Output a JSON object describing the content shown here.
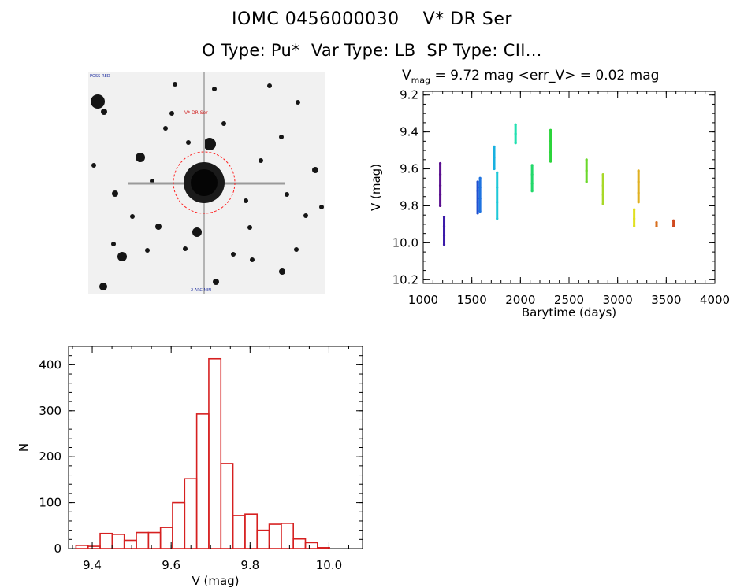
{
  "header": {
    "title": "IOMC 0456000030    V* DR Ser",
    "subtitle": "O Type: Pu*  Var Type: LB  SP Type: CII..."
  },
  "image_panel": {
    "corner_label_tl": "POSS-RED",
    "target_label": "V* DR Ser",
    "bottom_label": "2 ARC MIN",
    "marker_color": "#ff2020"
  },
  "light_curve": {
    "vmag_label": "V",
    "vmag_sub": "mag",
    "vmag_value": "= 9.72 mag <err_V> = 0.02 mag"
  },
  "chart_data": [
    {
      "type": "scatter",
      "title": "V_mag = 9.72 mag <err_V> = 0.02 mag",
      "xlabel": "Barytime (days)",
      "ylabel": "V (mag)",
      "xlim": [
        1000,
        4000
      ],
      "ylim": [
        10.22,
        9.18
      ],
      "xticks": [
        1000,
        1500,
        2000,
        2500,
        3000,
        3500,
        4000
      ],
      "yticks": [
        9.2,
        9.4,
        9.6,
        9.8,
        10.0,
        10.2
      ],
      "yticklabels": [
        "9.2",
        "9.4",
        "9.6",
        "9.8",
        "10.0",
        "10.2"
      ],
      "series": [
        {
          "name": "s1",
          "color": "#5a0f8f",
          "x": 1175,
          "y": [
            9.57,
            9.63,
            9.69,
            9.74,
            9.8
          ]
        },
        {
          "name": "s2",
          "color": "#3b1aa8",
          "x": 1215,
          "y": [
            9.86,
            9.91,
            9.96,
            10.01
          ]
        },
        {
          "name": "s3",
          "color": "#1f4fd1",
          "x": 1560,
          "y": [
            9.67,
            9.72,
            9.78,
            9.84
          ]
        },
        {
          "name": "s4",
          "color": "#1e73e0",
          "x": 1585,
          "y": [
            9.65,
            9.7,
            9.76,
            9.83
          ]
        },
        {
          "name": "s5",
          "color": "#18b0e0",
          "x": 1730,
          "y": [
            9.48,
            9.54,
            9.6
          ]
        },
        {
          "name": "s6",
          "color": "#1ec8d8",
          "x": 1760,
          "y": [
            9.62,
            9.7,
            9.78,
            9.87
          ]
        },
        {
          "name": "s7",
          "color": "#20e0b0",
          "x": 1950,
          "y": [
            9.36,
            9.41,
            9.46
          ]
        },
        {
          "name": "s8",
          "color": "#22d86a",
          "x": 2120,
          "y": [
            9.58,
            9.63,
            9.68,
            9.72
          ]
        },
        {
          "name": "s9",
          "color": "#2bd43a",
          "x": 2310,
          "y": [
            9.39,
            9.45,
            9.51,
            9.56
          ]
        },
        {
          "name": "s10",
          "color": "#6ad82a",
          "x": 2680,
          "y": [
            9.55,
            9.61,
            9.67
          ]
        },
        {
          "name": "s11",
          "color": "#a8d828",
          "x": 2850,
          "y": [
            9.63,
            9.69,
            9.74,
            9.79
          ]
        },
        {
          "name": "s12",
          "color": "#e0e020",
          "x": 3170,
          "y": [
            9.82,
            9.87,
            9.91
          ]
        },
        {
          "name": "s13",
          "color": "#e0b020",
          "x": 3215,
          "y": [
            9.61,
            9.67,
            9.73,
            9.78
          ]
        },
        {
          "name": "s14",
          "color": "#d87020",
          "x": 3400,
          "y": [
            9.89,
            9.91
          ]
        },
        {
          "name": "s15",
          "color": "#d04a20",
          "x": 3575,
          "y": [
            9.88,
            9.91
          ]
        }
      ]
    },
    {
      "type": "bar",
      "title": "",
      "xlabel": "V (mag)",
      "ylabel": "N",
      "xlim": [
        9.34,
        10.085
      ],
      "ylim": [
        0,
        440
      ],
      "xticks": [
        9.4,
        9.6,
        9.8,
        10.0
      ],
      "xticklabels": [
        "9.4",
        "9.6",
        "9.8",
        "10.0"
      ],
      "yticks": [
        0,
        100,
        200,
        300,
        400
      ],
      "bin_width": 0.0306,
      "bin_start": 9.3588,
      "values": [
        7,
        5,
        33,
        31,
        18,
        35,
        35,
        46,
        100,
        152,
        293,
        413,
        185,
        72,
        75,
        40,
        53,
        55,
        21,
        13,
        2
      ],
      "bar_color": "#d62020"
    }
  ]
}
